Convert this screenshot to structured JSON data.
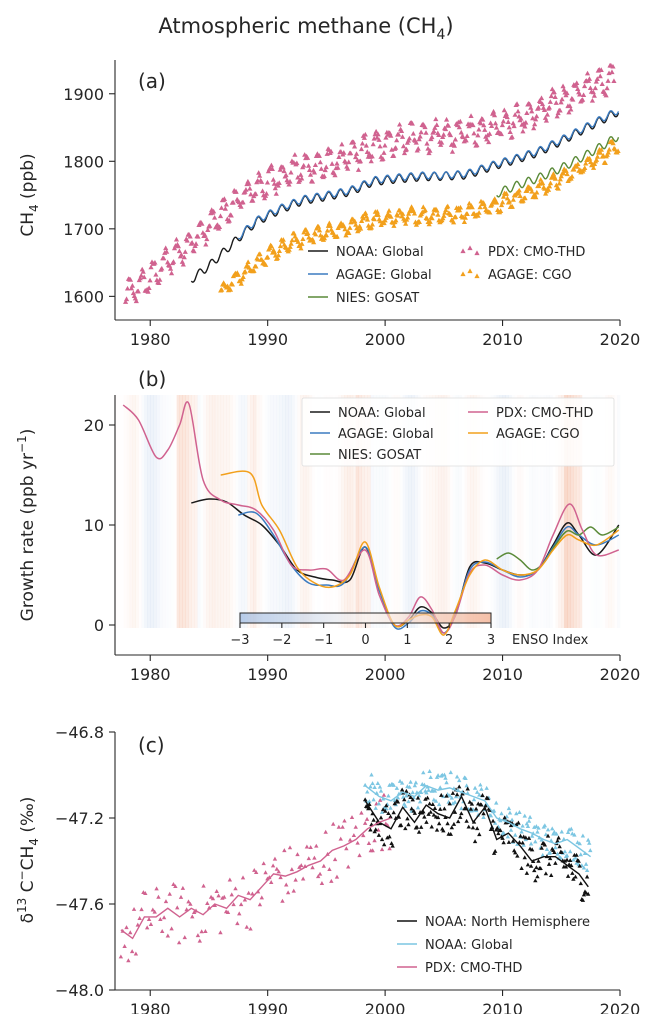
{
  "figure": {
    "title": "Atmospheric methane (CH₄)"
  },
  "colors": {
    "noaa_global": "#1a1a1a",
    "agage_global": "#3b7bc0",
    "nies_gosat": "#5a8a38",
    "pdx_cmo_thd": "#d0628f",
    "agage_cgo": "#f2a01c",
    "noaa_nh": "#111111",
    "noaa_global_c13": "#7cc6e2",
    "enso_pos": "#f0a583",
    "enso_neg": "#9bb8e0"
  },
  "chart_data": [
    {
      "panel": "a",
      "panel_label": "(a)",
      "type": "line+scatter",
      "ylabel": "CH₄ (ppb)",
      "xlim": [
        1977,
        2020
      ],
      "ylim": [
        1565,
        1950
      ],
      "x_ticks": [
        1980,
        1990,
        2000,
        2010,
        2020
      ],
      "y_ticks": [
        1600,
        1700,
        1800,
        1900
      ],
      "legend": "bottom-right",
      "series": [
        {
          "name": "NOAA: Global",
          "kind": "line",
          "color_key": "noaa_global",
          "x": [
            1983.5,
            1985,
            1987,
            1989,
            1991,
            1993,
            1995,
            1997,
            1999,
            2001,
            2003,
            2005,
            2007,
            2009,
            2011,
            2013,
            2015,
            2017,
            2019,
            2019.9
          ],
          "y": [
            1625,
            1645,
            1678,
            1710,
            1728,
            1742,
            1748,
            1755,
            1770,
            1774,
            1777,
            1778,
            1780,
            1792,
            1802,
            1813,
            1830,
            1848,
            1866,
            1874
          ],
          "seasonal_amp": 6
        },
        {
          "name": "AGAGE: Global",
          "kind": "line",
          "color_key": "agage_global",
          "x": [
            1987.5,
            1989,
            1991,
            1993,
            1995,
            1997,
            1999,
            2001,
            2003,
            2005,
            2007,
            2009,
            2011,
            2013,
            2015,
            2017,
            2019,
            2019.9
          ],
          "y": [
            1688,
            1712,
            1730,
            1744,
            1750,
            1757,
            1772,
            1776,
            1779,
            1779,
            1782,
            1794,
            1804,
            1815,
            1832,
            1850,
            1868,
            1876
          ],
          "seasonal_amp": 5
        },
        {
          "name": "NIES: GOSAT",
          "kind": "line",
          "color_key": "nies_gosat",
          "x": [
            2009.5,
            2011,
            2013,
            2015,
            2017,
            2019,
            2019.9
          ],
          "y": [
            1752,
            1763,
            1775,
            1790,
            1808,
            1828,
            1838
          ],
          "seasonal_amp": 6
        },
        {
          "name": "PDX: CMO-THD",
          "kind": "scatter",
          "color_key": "pdx_cmo_thd",
          "x": [
            1977.9,
            1980,
            1982,
            1984,
            1986,
            1988,
            1990,
            1992,
            1994,
            1996,
            1998,
            2000,
            2002,
            2004,
            2006,
            2008,
            2010,
            2012,
            2014,
            2016,
            2018,
            2019.5
          ],
          "y": [
            1600,
            1628,
            1660,
            1688,
            1720,
            1750,
            1770,
            1786,
            1793,
            1800,
            1815,
            1828,
            1834,
            1838,
            1840,
            1848,
            1856,
            1866,
            1882,
            1898,
            1915,
            1925
          ],
          "seasonal_amp": 18
        },
        {
          "name": "AGAGE: CGO",
          "kind": "scatter",
          "color_key": "agage_cgo",
          "x": [
            1986,
            1988,
            1990,
            1992,
            1994,
            1996,
            1998,
            2000,
            2002,
            2004,
            2006,
            2008,
            2010,
            2012,
            2014,
            2016,
            2018,
            2019.9
          ],
          "y": [
            1608,
            1635,
            1660,
            1680,
            1690,
            1697,
            1710,
            1715,
            1719,
            1720,
            1722,
            1728,
            1740,
            1752,
            1766,
            1784,
            1805,
            1822
          ],
          "seasonal_amp": 10
        }
      ]
    },
    {
      "panel": "b",
      "panel_label": "(b)",
      "type": "line",
      "ylabel": "Growth rate (ppb yr⁻¹)",
      "xlim": [
        1977,
        2020
      ],
      "ylim": [
        -3,
        23
      ],
      "x_ticks": [
        1980,
        1990,
        2000,
        2010,
        2020
      ],
      "y_ticks": [
        0,
        10,
        20
      ],
      "legend": "top-right",
      "enso_colorbar": {
        "label": "ENSO Index",
        "ticks": [
          "−3",
          "−2",
          "−1",
          "0",
          "1",
          "2",
          "3"
        ],
        "range": [
          -3,
          3
        ]
      },
      "series": [
        {
          "name": "NOAA: Global",
          "color_key": "noaa_global",
          "x": [
            1983.5,
            1985,
            1986.5,
            1988,
            1989.5,
            1991,
            1992.5,
            1994,
            1995.5,
            1997,
            1998.3,
            1999.5,
            2000.8,
            2002,
            2003,
            2004,
            2005,
            2006,
            2007.2,
            2008.5,
            2010,
            2011.5,
            2013,
            2014.3,
            2015.5,
            2016.5,
            2018,
            2019.9
          ],
          "y": [
            12.2,
            12.6,
            12.3,
            11.0,
            10.0,
            8.0,
            5.5,
            4.8,
            4.5,
            4.5,
            7.8,
            3.5,
            0.0,
            0.5,
            1.8,
            1.2,
            -0.3,
            1.0,
            5.8,
            6.2,
            5.5,
            5.0,
            5.5,
            8.0,
            10.2,
            9.0,
            7.0,
            10.0
          ]
        },
        {
          "name": "AGAGE: Global",
          "color_key": "agage_global",
          "x": [
            1987.5,
            1989,
            1990.5,
            1992,
            1993.5,
            1995,
            1996.5,
            1998.3,
            1999.5,
            2000.8,
            2002,
            2003,
            2004,
            2005,
            2006,
            2007.2,
            2008.5,
            2010,
            2011.5,
            2013,
            2014.3,
            2015.5,
            2016.5,
            2018,
            2019.9
          ],
          "y": [
            11.0,
            11.2,
            9.0,
            6.0,
            4.2,
            4.0,
            4.2,
            7.8,
            3.5,
            -0.2,
            0.2,
            1.4,
            1.0,
            -0.8,
            1.2,
            5.5,
            6.3,
            5.5,
            4.8,
            5.5,
            7.8,
            9.8,
            9.0,
            8.0,
            9.0
          ]
        },
        {
          "name": "NIES: GOSAT",
          "color_key": "nies_gosat",
          "x": [
            2009.5,
            2010.5,
            2011.5,
            2012.5,
            2013.5,
            2014.5,
            2015.5,
            2016.5,
            2017.5,
            2018.5,
            2019.9
          ],
          "y": [
            6.6,
            7.2,
            6.5,
            5.5,
            6.2,
            8.0,
            9.4,
            9.0,
            9.8,
            9.0,
            9.8
          ]
        },
        {
          "name": "PDX: CMO-THD",
          "color_key": "pdx_cmo_thd",
          "x": [
            1977.7,
            1979,
            1980.5,
            1981.5,
            1982.5,
            1983.3,
            1984.5,
            1986,
            1987.5,
            1989,
            1990.5,
            1992,
            1993.5,
            1995,
            1996.5,
            1998.3,
            1999.5,
            2000.8,
            2002,
            2003,
            2004,
            2005,
            2006,
            2007.2,
            2008.5,
            2010,
            2011.5,
            2013,
            2014.3,
            2015.7,
            2016.8,
            2018,
            2019.9
          ],
          "y": [
            22.0,
            20.5,
            16.8,
            17.5,
            20.0,
            22.1,
            14.5,
            12.5,
            12.0,
            11.5,
            9.5,
            6.0,
            5.5,
            5.6,
            4.5,
            7.5,
            3.0,
            0.0,
            0.8,
            2.8,
            1.5,
            -0.8,
            1.0,
            5.2,
            6.0,
            5.0,
            4.5,
            5.5,
            9.0,
            12.1,
            9.5,
            7.0,
            7.5
          ]
        },
        {
          "name": "AGAGE: CGO",
          "color_key": "agage_cgo",
          "x": [
            1986,
            1988.5,
            1989.5,
            1991,
            1992.5,
            1994,
            1995.5,
            1997,
            1998.3,
            1999.5,
            2000.8,
            2002,
            2003,
            2004,
            2005,
            2006,
            2007.2,
            2008.5,
            2010,
            2011.5,
            2013,
            2014.3,
            2015.5,
            2016.5,
            2018,
            2019.9
          ],
          "y": [
            15.0,
            15.2,
            12.0,
            9.5,
            5.8,
            4.2,
            3.8,
            5.0,
            8.3,
            3.8,
            0.0,
            0.5,
            1.0,
            0.8,
            -1.0,
            1.5,
            5.0,
            6.5,
            5.5,
            5.0,
            5.5,
            7.5,
            9.0,
            8.5,
            8.0,
            9.5
          ]
        }
      ]
    },
    {
      "panel": "c",
      "panel_label": "(c)",
      "type": "line+scatter",
      "ylabel": "δ¹³ C⁻CH₄ (‰)",
      "xlim": [
        1977,
        2020
      ],
      "ylim": [
        -48.0,
        -46.8
      ],
      "x_ticks": [
        1980,
        1990,
        2000,
        2010,
        2020
      ],
      "y_ticks": [
        -48.0,
        -47.6,
        -47.2,
        -46.8
      ],
      "y_tick_labels": [
        "−48.0",
        "−47.6",
        "−47.2",
        "−46.8"
      ],
      "legend": "bottom-right",
      "series": [
        {
          "name": "NOAA: North Hemisphere",
          "kind": "line+scatter",
          "color_key": "noaa_nh",
          "x": [
            1998.3,
            1999.5,
            2000.5,
            2001.5,
            2002.5,
            2003.5,
            2004.5,
            2005.5,
            2006.5,
            2007.5,
            2008.5,
            2009.5,
            2010.5,
            2011.5,
            2012.5,
            2013.5,
            2014.5,
            2015.5,
            2016.5,
            2017.3
          ],
          "y": [
            -47.12,
            -47.22,
            -47.25,
            -47.15,
            -47.22,
            -47.14,
            -47.18,
            -47.2,
            -47.1,
            -47.22,
            -47.15,
            -47.3,
            -47.27,
            -47.33,
            -47.4,
            -47.38,
            -47.38,
            -47.42,
            -47.46,
            -47.52
          ],
          "scatter_spread": 0.1
        },
        {
          "name": "NOAA: Global",
          "kind": "line+scatter",
          "color_key": "noaa_global_c13",
          "x": [
            1998.3,
            1999.5,
            2000.5,
            2001.5,
            2002.5,
            2003.5,
            2004.5,
            2005.5,
            2006.5,
            2007.5,
            2008.5,
            2009.5,
            2010.5,
            2011.5,
            2012.5,
            2013.5,
            2014.5,
            2015.5,
            2016.5,
            2017.5
          ],
          "y": [
            -47.05,
            -47.1,
            -47.12,
            -47.08,
            -47.1,
            -47.05,
            -47.07,
            -47.06,
            -47.08,
            -47.1,
            -47.12,
            -47.2,
            -47.22,
            -47.25,
            -47.27,
            -47.3,
            -47.32,
            -47.3,
            -47.34,
            -47.38
          ],
          "scatter_spread": 0.08
        },
        {
          "name": "PDX: CMO-THD",
          "kind": "line+scatter",
          "color_key": "pdx_cmo_thd",
          "x": [
            1977.5,
            1978.5,
            1979.5,
            1980.5,
            1981.5,
            1982.5,
            1983.5,
            1984.5,
            1985.5,
            1986.5,
            1987.5,
            1988.5,
            1989.5,
            1990.5,
            1991.5,
            1992.5,
            1993.5,
            1994.5,
            1995.5,
            1996.5,
            1997.5,
            1998.5,
            1999.5,
            2000.5
          ],
          "y": [
            -47.72,
            -47.76,
            -47.66,
            -47.66,
            -47.62,
            -47.66,
            -47.62,
            -47.65,
            -47.6,
            -47.62,
            -47.56,
            -47.58,
            -47.52,
            -47.46,
            -47.47,
            -47.45,
            -47.42,
            -47.4,
            -47.35,
            -47.33,
            -47.3,
            -47.25,
            -47.22,
            -47.2
          ],
          "scatter_spread": 0.14
        }
      ]
    }
  ]
}
